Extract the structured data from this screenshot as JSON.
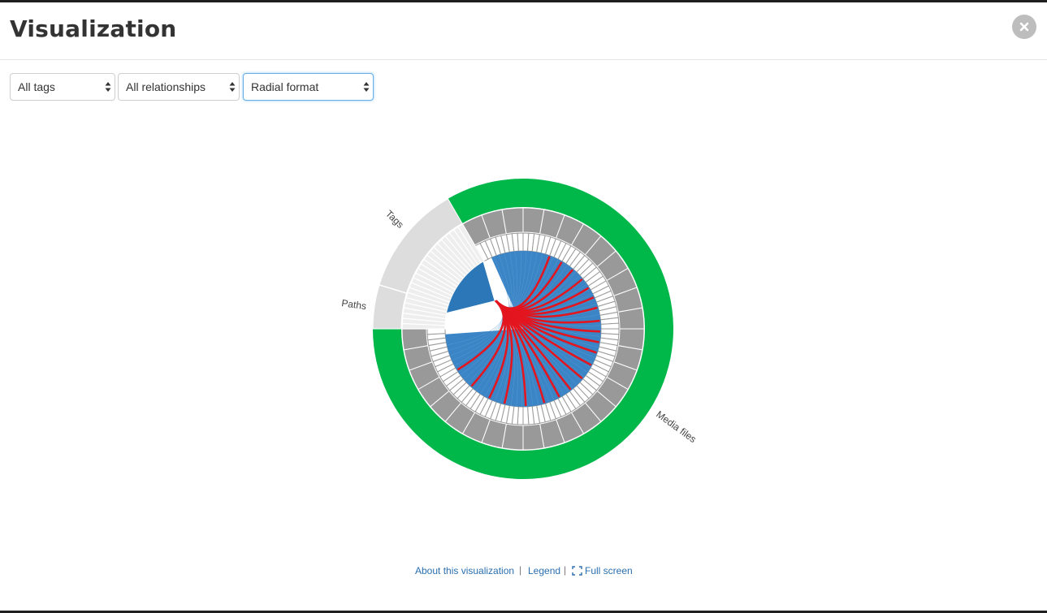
{
  "modal": {
    "title": "Visualization",
    "close_icon": "close-icon"
  },
  "toolbar": {
    "tag_filter": "All tags",
    "relationship_filter": "All relationships",
    "format_select": "Radial format"
  },
  "colors": {
    "media_files": "#00b84a",
    "tags_paths": "#dddddd",
    "cells_dark": "#999999",
    "links_blue": "#3b85c6",
    "links_red": "#e3151e",
    "accent_link": "#2a6fae"
  },
  "chart_data": {
    "type": "radial",
    "sections": [
      {
        "name": "Media files",
        "color": "#00b84a"
      },
      {
        "name": "Tags",
        "color": "#dddddd"
      },
      {
        "name": "Paths",
        "color": "#dddddd"
      }
    ],
    "title": ""
  },
  "footer": {
    "about_link": "About this visualization",
    "legend_link": "Legend",
    "fullscreen_link": "Full screen",
    "separator": "|"
  }
}
